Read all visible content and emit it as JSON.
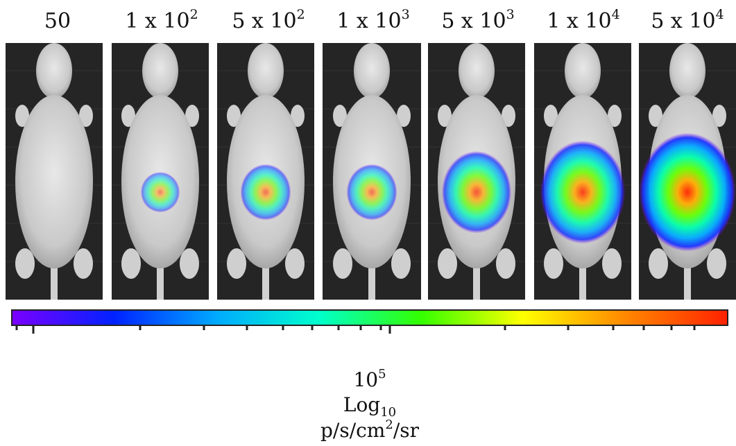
{
  "panels": [
    {
      "label_base": "50",
      "label_exp": "",
      "signal_level": 0.0
    },
    {
      "label_base": "1 x 10",
      "label_exp": "2",
      "signal_level": 0.15
    },
    {
      "label_base": "5 x 10",
      "label_exp": "2",
      "signal_level": 0.3
    },
    {
      "label_base": "1 x 10",
      "label_exp": "3",
      "signal_level": 0.3
    },
    {
      "label_base": "5 x 10",
      "label_exp": "3",
      "signal_level": 0.55
    },
    {
      "label_base": "1 x 10",
      "label_exp": "4",
      "signal_level": 0.75
    },
    {
      "label_base": "5 x 10",
      "label_exp": "4",
      "signal_level": 0.9
    }
  ],
  "colorbar": {
    "colors": [
      "#7a00ff",
      "#0022ff",
      "#00aaff",
      "#00ffcc",
      "#33ff00",
      "#ffff00",
      "#ff8800",
      "#ff2200"
    ]
  },
  "scale": {
    "max_base": "10",
    "max_exp": "5",
    "log_base": "Log",
    "log_sub": "10",
    "units_a": "p/s/cm",
    "units_exp": "2",
    "units_b": "/sr"
  }
}
